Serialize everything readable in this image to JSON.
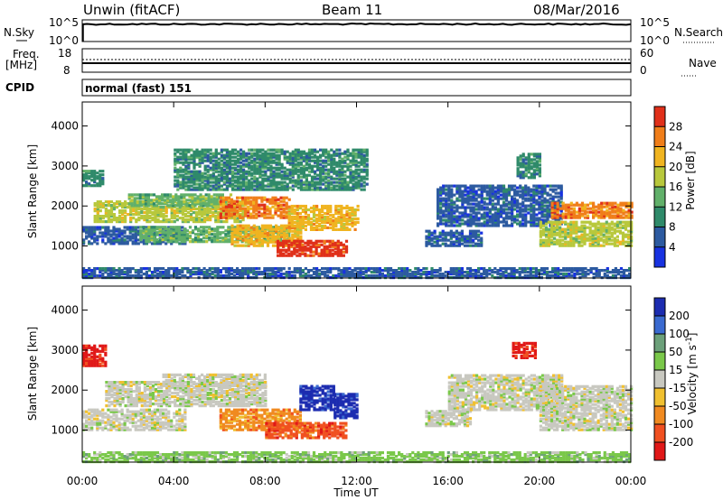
{
  "header": {
    "title": "Unwin (fitACF)",
    "beam": "Beam 11",
    "date": "08/Mar/2016"
  },
  "strip_labels": {
    "nsky": "N.Sky",
    "nsearch": "N.Search",
    "freq_line1": "Freq.",
    "freq_line2": "[MHz]",
    "nave": "Nave",
    "cpid": "CPID",
    "cpid_value": "normal (fast) 151"
  },
  "strip_ticks": {
    "noise_left": [
      "10^5",
      "10^0"
    ],
    "noise_right": [
      "10^5",
      "10^0"
    ],
    "freq_left": [
      "18",
      "8"
    ],
    "freq_right": [
      "60",
      "0"
    ]
  },
  "chart_data": [
    {
      "type": "heatmap",
      "name_on_colorbar": "Power [dB]",
      "ylabel": "Slant Range [km]",
      "yticks": [
        "1000",
        "2000",
        "3000",
        "4000"
      ],
      "ylim": [
        200,
        4600
      ],
      "xlim_hours": [
        0,
        24
      ],
      "colorbar_ticks": [
        "4",
        "8",
        "12",
        "16",
        "20",
        "24",
        "28"
      ],
      "colorbar_colors": [
        "#1832e0",
        "#2c5aa0",
        "#2f8a6a",
        "#61b06a",
        "#b8c83c",
        "#f0b420",
        "#f07e1a",
        "#e0301a"
      ],
      "echo_regions": [
        {
          "t0": 0.0,
          "t1": 0.9,
          "r0": 2500,
          "r1": 2900,
          "level": 2
        },
        {
          "t0": 0.0,
          "t1": 4.5,
          "r0": 1050,
          "r1": 1500,
          "level": 1
        },
        {
          "t0": 0.5,
          "t1": 7.0,
          "r0": 1600,
          "r1": 2100,
          "level": 4
        },
        {
          "t0": 2.0,
          "t1": 6.5,
          "r0": 2000,
          "r1": 2300,
          "level": 3
        },
        {
          "t0": 2.5,
          "t1": 9.0,
          "r0": 1100,
          "r1": 1500,
          "level": 3
        },
        {
          "t0": 6.0,
          "t1": 9.0,
          "r0": 1700,
          "r1": 2200,
          "level": 6
        },
        {
          "t0": 6.5,
          "t1": 9.5,
          "r0": 1000,
          "r1": 1500,
          "level": 5
        },
        {
          "t0": 8.5,
          "t1": 11.5,
          "r0": 750,
          "r1": 1150,
          "level": 7
        },
        {
          "t0": 9.0,
          "t1": 12.0,
          "r0": 1400,
          "r1": 2000,
          "level": 5
        },
        {
          "t0": 4.0,
          "t1": 12.5,
          "r0": 2400,
          "r1": 3400,
          "level": 2
        },
        {
          "t0": 0.0,
          "t1": 24.0,
          "r0": 200,
          "r1": 450,
          "level": 1
        },
        {
          "t0": 15.0,
          "t1": 17.5,
          "r0": 1000,
          "r1": 1400,
          "level": 1
        },
        {
          "t0": 15.5,
          "t1": 21.0,
          "r0": 1500,
          "r1": 2500,
          "level": 1
        },
        {
          "t0": 19.0,
          "t1": 20.0,
          "r0": 2700,
          "r1": 3300,
          "level": 2
        },
        {
          "t0": 20.5,
          "t1": 24.0,
          "r0": 1700,
          "r1": 2100,
          "level": 6
        },
        {
          "t0": 20.0,
          "t1": 24.0,
          "r0": 1000,
          "r1": 1600,
          "level": 4
        }
      ]
    },
    {
      "type": "heatmap",
      "name_on_colorbar": "Velocity [m s^-1]",
      "ylabel": "Slant Range [km]",
      "yticks": [
        "1000",
        "2000",
        "3000",
        "4000"
      ],
      "ylim": [
        200,
        4600
      ],
      "xlim_hours": [
        0,
        24
      ],
      "xticks": [
        "00:00",
        "04:00",
        "08:00",
        "12:00",
        "16:00",
        "20:00",
        "00:00"
      ],
      "xlabel": "Time UT",
      "colorbar_ticks": [
        "200",
        "100",
        "50",
        "15",
        "-15",
        "-50",
        "-100",
        "-200"
      ],
      "colorbar_colors": [
        "#1c2cb0",
        "#3a6ad0",
        "#6ca07a",
        "#7ac84a",
        "#c8c8c0",
        "#f0c030",
        "#f08a20",
        "#f05020",
        "#e01818"
      ],
      "echo_regions": [
        {
          "t0": 0.0,
          "t1": 1.0,
          "r0": 2600,
          "r1": 3100,
          "vel_level": 8
        },
        {
          "t0": 0.0,
          "t1": 4.5,
          "r0": 1000,
          "r1": 1500,
          "vel_level": 4
        },
        {
          "t0": 1.0,
          "t1": 8.0,
          "r0": 1600,
          "r1": 2200,
          "vel_level": 4
        },
        {
          "t0": 3.5,
          "t1": 8.0,
          "r0": 2100,
          "r1": 2400,
          "vel_level": 4
        },
        {
          "t0": 6.0,
          "t1": 9.5,
          "r0": 1000,
          "r1": 1500,
          "vel_level": 6
        },
        {
          "t0": 8.0,
          "t1": 11.5,
          "r0": 800,
          "r1": 1200,
          "vel_level": 7
        },
        {
          "t0": 9.5,
          "t1": 11.0,
          "r0": 1500,
          "r1": 2100,
          "vel_level": 0
        },
        {
          "t0": 11.0,
          "t1": 12.0,
          "r0": 1300,
          "r1": 1900,
          "vel_level": 0
        },
        {
          "t0": 0.0,
          "t1": 24.0,
          "r0": 200,
          "r1": 450,
          "vel_level": 3
        },
        {
          "t0": 15.0,
          "t1": 17.0,
          "r0": 1100,
          "r1": 1500,
          "vel_level": 4
        },
        {
          "t0": 16.0,
          "t1": 21.0,
          "r0": 1500,
          "r1": 2400,
          "vel_level": 4
        },
        {
          "t0": 18.8,
          "t1": 19.8,
          "r0": 2800,
          "r1": 3200,
          "vel_level": 8
        },
        {
          "t0": 20.0,
          "t1": 24.0,
          "r0": 1000,
          "r1": 2100,
          "vel_level": 4
        }
      ]
    }
  ]
}
